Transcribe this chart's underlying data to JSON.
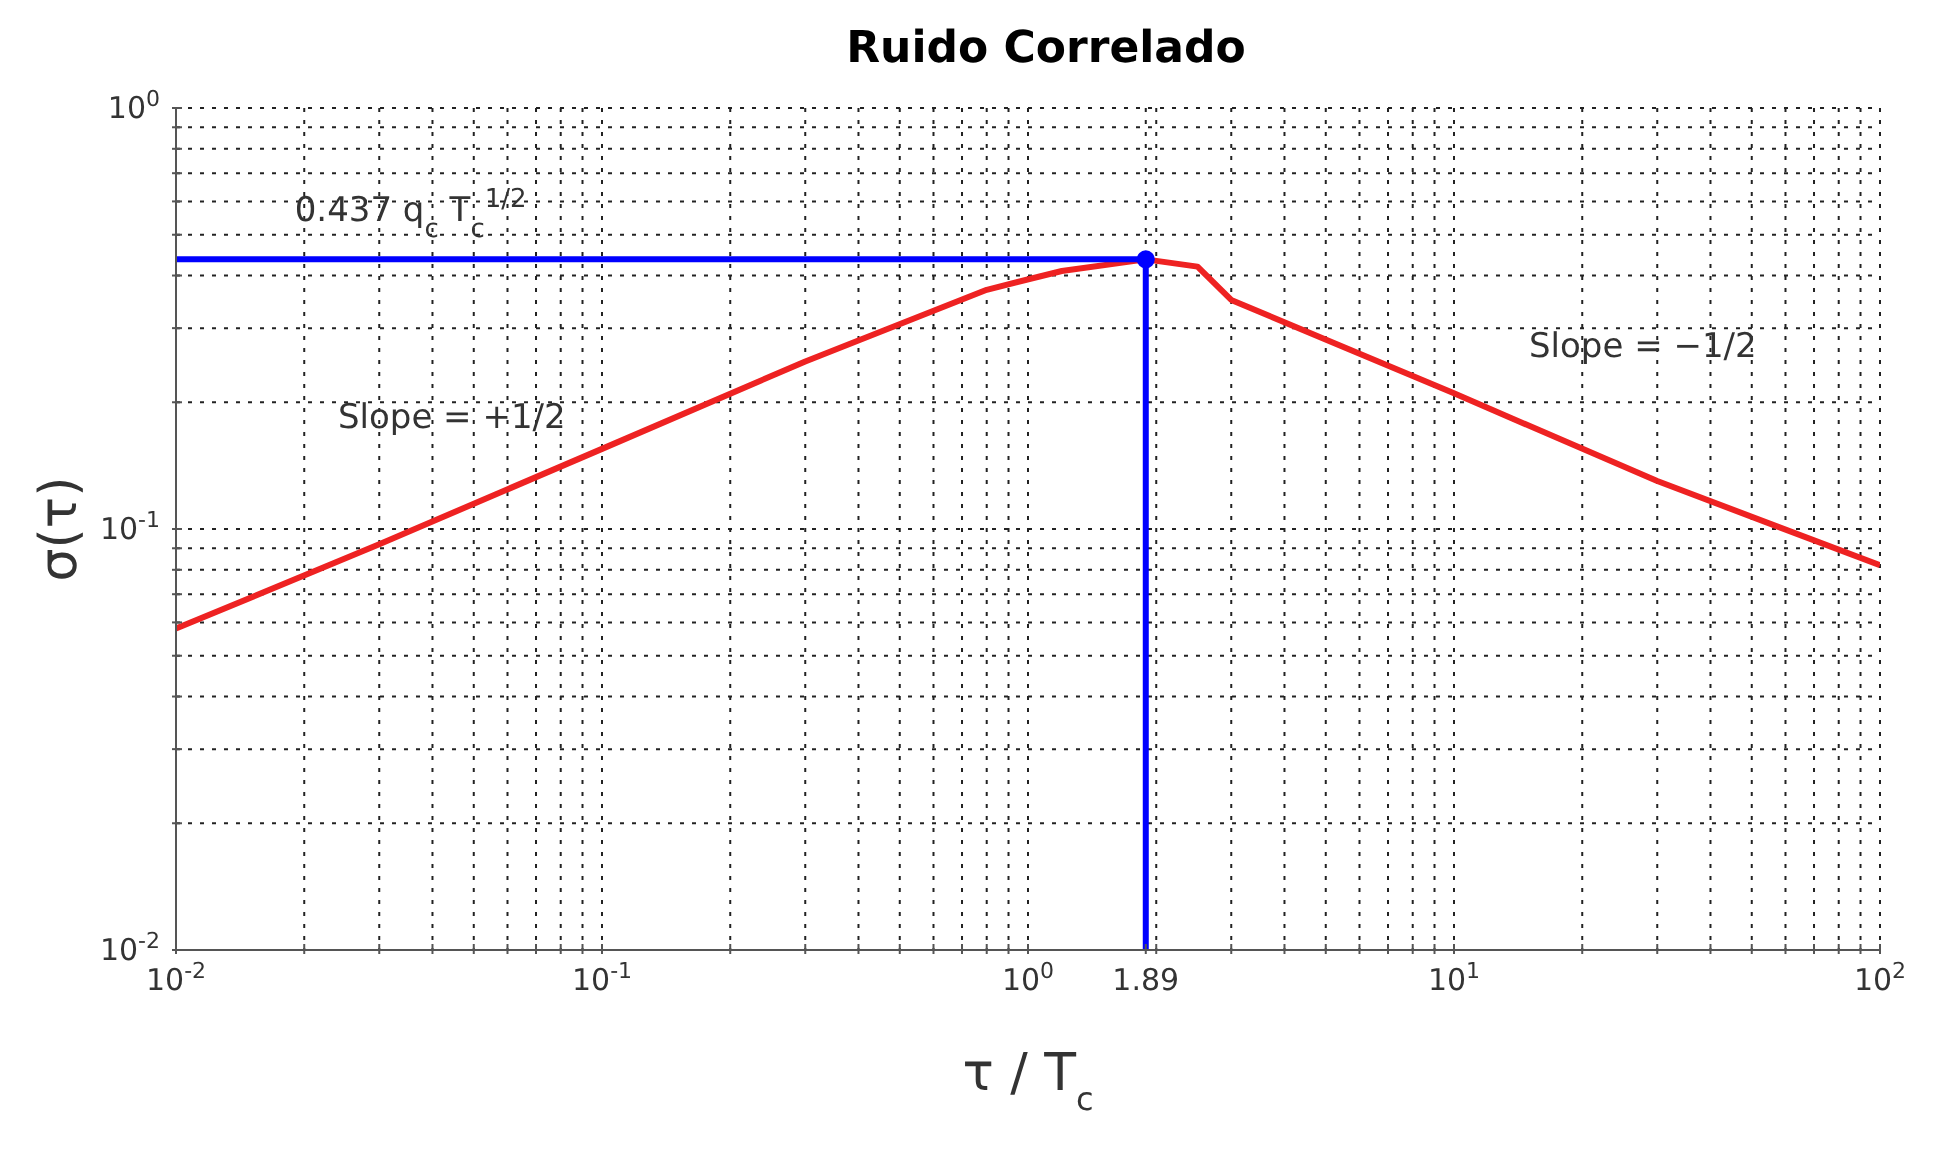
{
  "chart_data": {
    "type": "line",
    "title": "Ruido Correlado",
    "xlabel": "τ / T$_{c}$",
    "ylabel": "σ(τ)",
    "log": "xy",
    "grid": true,
    "marker": "none",
    "line_style": "solid",
    "xlim": [
      0.01,
      100
    ],
    "ylim": [
      0.01,
      1
    ],
    "xticks": [
      {
        "value": 0.01,
        "label": "10$^{-2}$"
      },
      {
        "value": 0.02,
        "label": null
      },
      {
        "value": 0.03,
        "label": null
      },
      {
        "value": 0.04,
        "label": null
      },
      {
        "value": 0.05,
        "label": null
      },
      {
        "value": 0.06,
        "label": null
      },
      {
        "value": 0.07,
        "label": null
      },
      {
        "value": 0.08,
        "label": null
      },
      {
        "value": 0.09,
        "label": null
      },
      {
        "value": 0.1,
        "label": "10$^{-1}$"
      },
      {
        "value": 0.2,
        "label": null
      },
      {
        "value": 0.3,
        "label": null
      },
      {
        "value": 0.4,
        "label": null
      },
      {
        "value": 0.5,
        "label": null
      },
      {
        "value": 0.6,
        "label": null
      },
      {
        "value": 0.7,
        "label": null
      },
      {
        "value": 0.8,
        "label": null
      },
      {
        "value": 0.9,
        "label": null
      },
      {
        "value": 1,
        "label": "10$^{0}$"
      },
      {
        "value": 1.89,
        "label": "1.89"
      },
      {
        "value": 2,
        "label": null
      },
      {
        "value": 3,
        "label": null
      },
      {
        "value": 4,
        "label": null
      },
      {
        "value": 5,
        "label": null
      },
      {
        "value": 6,
        "label": null
      },
      {
        "value": 7,
        "label": null
      },
      {
        "value": 8,
        "label": null
      },
      {
        "value": 9,
        "label": null
      },
      {
        "value": 10,
        "label": "10$^{1}$"
      },
      {
        "value": 20,
        "label": null
      },
      {
        "value": 30,
        "label": null
      },
      {
        "value": 40,
        "label": null
      },
      {
        "value": 50,
        "label": null
      },
      {
        "value": 60,
        "label": null
      },
      {
        "value": 70,
        "label": null
      },
      {
        "value": 80,
        "label": null
      },
      {
        "value": 90,
        "label": null
      },
      {
        "value": 100,
        "label": "10$^{2}$"
      }
    ],
    "yticks": [
      {
        "value": 0.01,
        "label": "10$^{-2}$"
      },
      {
        "value": 0.02,
        "label": null
      },
      {
        "value": 0.03,
        "label": null
      },
      {
        "value": 0.04,
        "label": null
      },
      {
        "value": 0.05,
        "label": null
      },
      {
        "value": 0.06,
        "label": null
      },
      {
        "value": 0.07,
        "label": null
      },
      {
        "value": 0.08,
        "label": null
      },
      {
        "value": 0.09,
        "label": null
      },
      {
        "value": 0.1,
        "label": "10$^{-1}$"
      },
      {
        "value": 0.2,
        "label": null
      },
      {
        "value": 0.3,
        "label": null
      },
      {
        "value": 0.4,
        "label": null
      },
      {
        "value": 0.5,
        "label": null
      },
      {
        "value": 0.6,
        "label": null
      },
      {
        "value": 0.7,
        "label": null
      },
      {
        "value": 0.8,
        "label": null
      },
      {
        "value": 0.9,
        "label": null
      },
      {
        "value": 1,
        "label": "10$^{0}$"
      }
    ],
    "series": [
      {
        "type": "line",
        "color": "#ee2222",
        "x": [
          0.01,
          0.03,
          0.1,
          0.3,
          0.8,
          1.2,
          1.89,
          2.5,
          3,
          10,
          30,
          100
        ],
        "values": [
          0.058,
          0.092,
          0.155,
          0.25,
          0.37,
          0.41,
          0.437,
          0.42,
          0.35,
          0.21,
          0.13,
          0.082
        ]
      },
      {
        "type": "line",
        "color": "#0000ff",
        "x": [
          0.01,
          1.89,
          1.89
        ],
        "values": [
          0.437,
          0.437,
          0.01
        ]
      },
      {
        "type": "scatter",
        "color": "#0000ff",
        "marker": "circle",
        "x": [
          1.89
        ],
        "values": [
          0.437
        ]
      }
    ],
    "annotations": [
      "0.437 q$_{c}$ T$_{c}$$^{1/2}$",
      "Slope = +1/2",
      "Slope = −1/2"
    ]
  }
}
